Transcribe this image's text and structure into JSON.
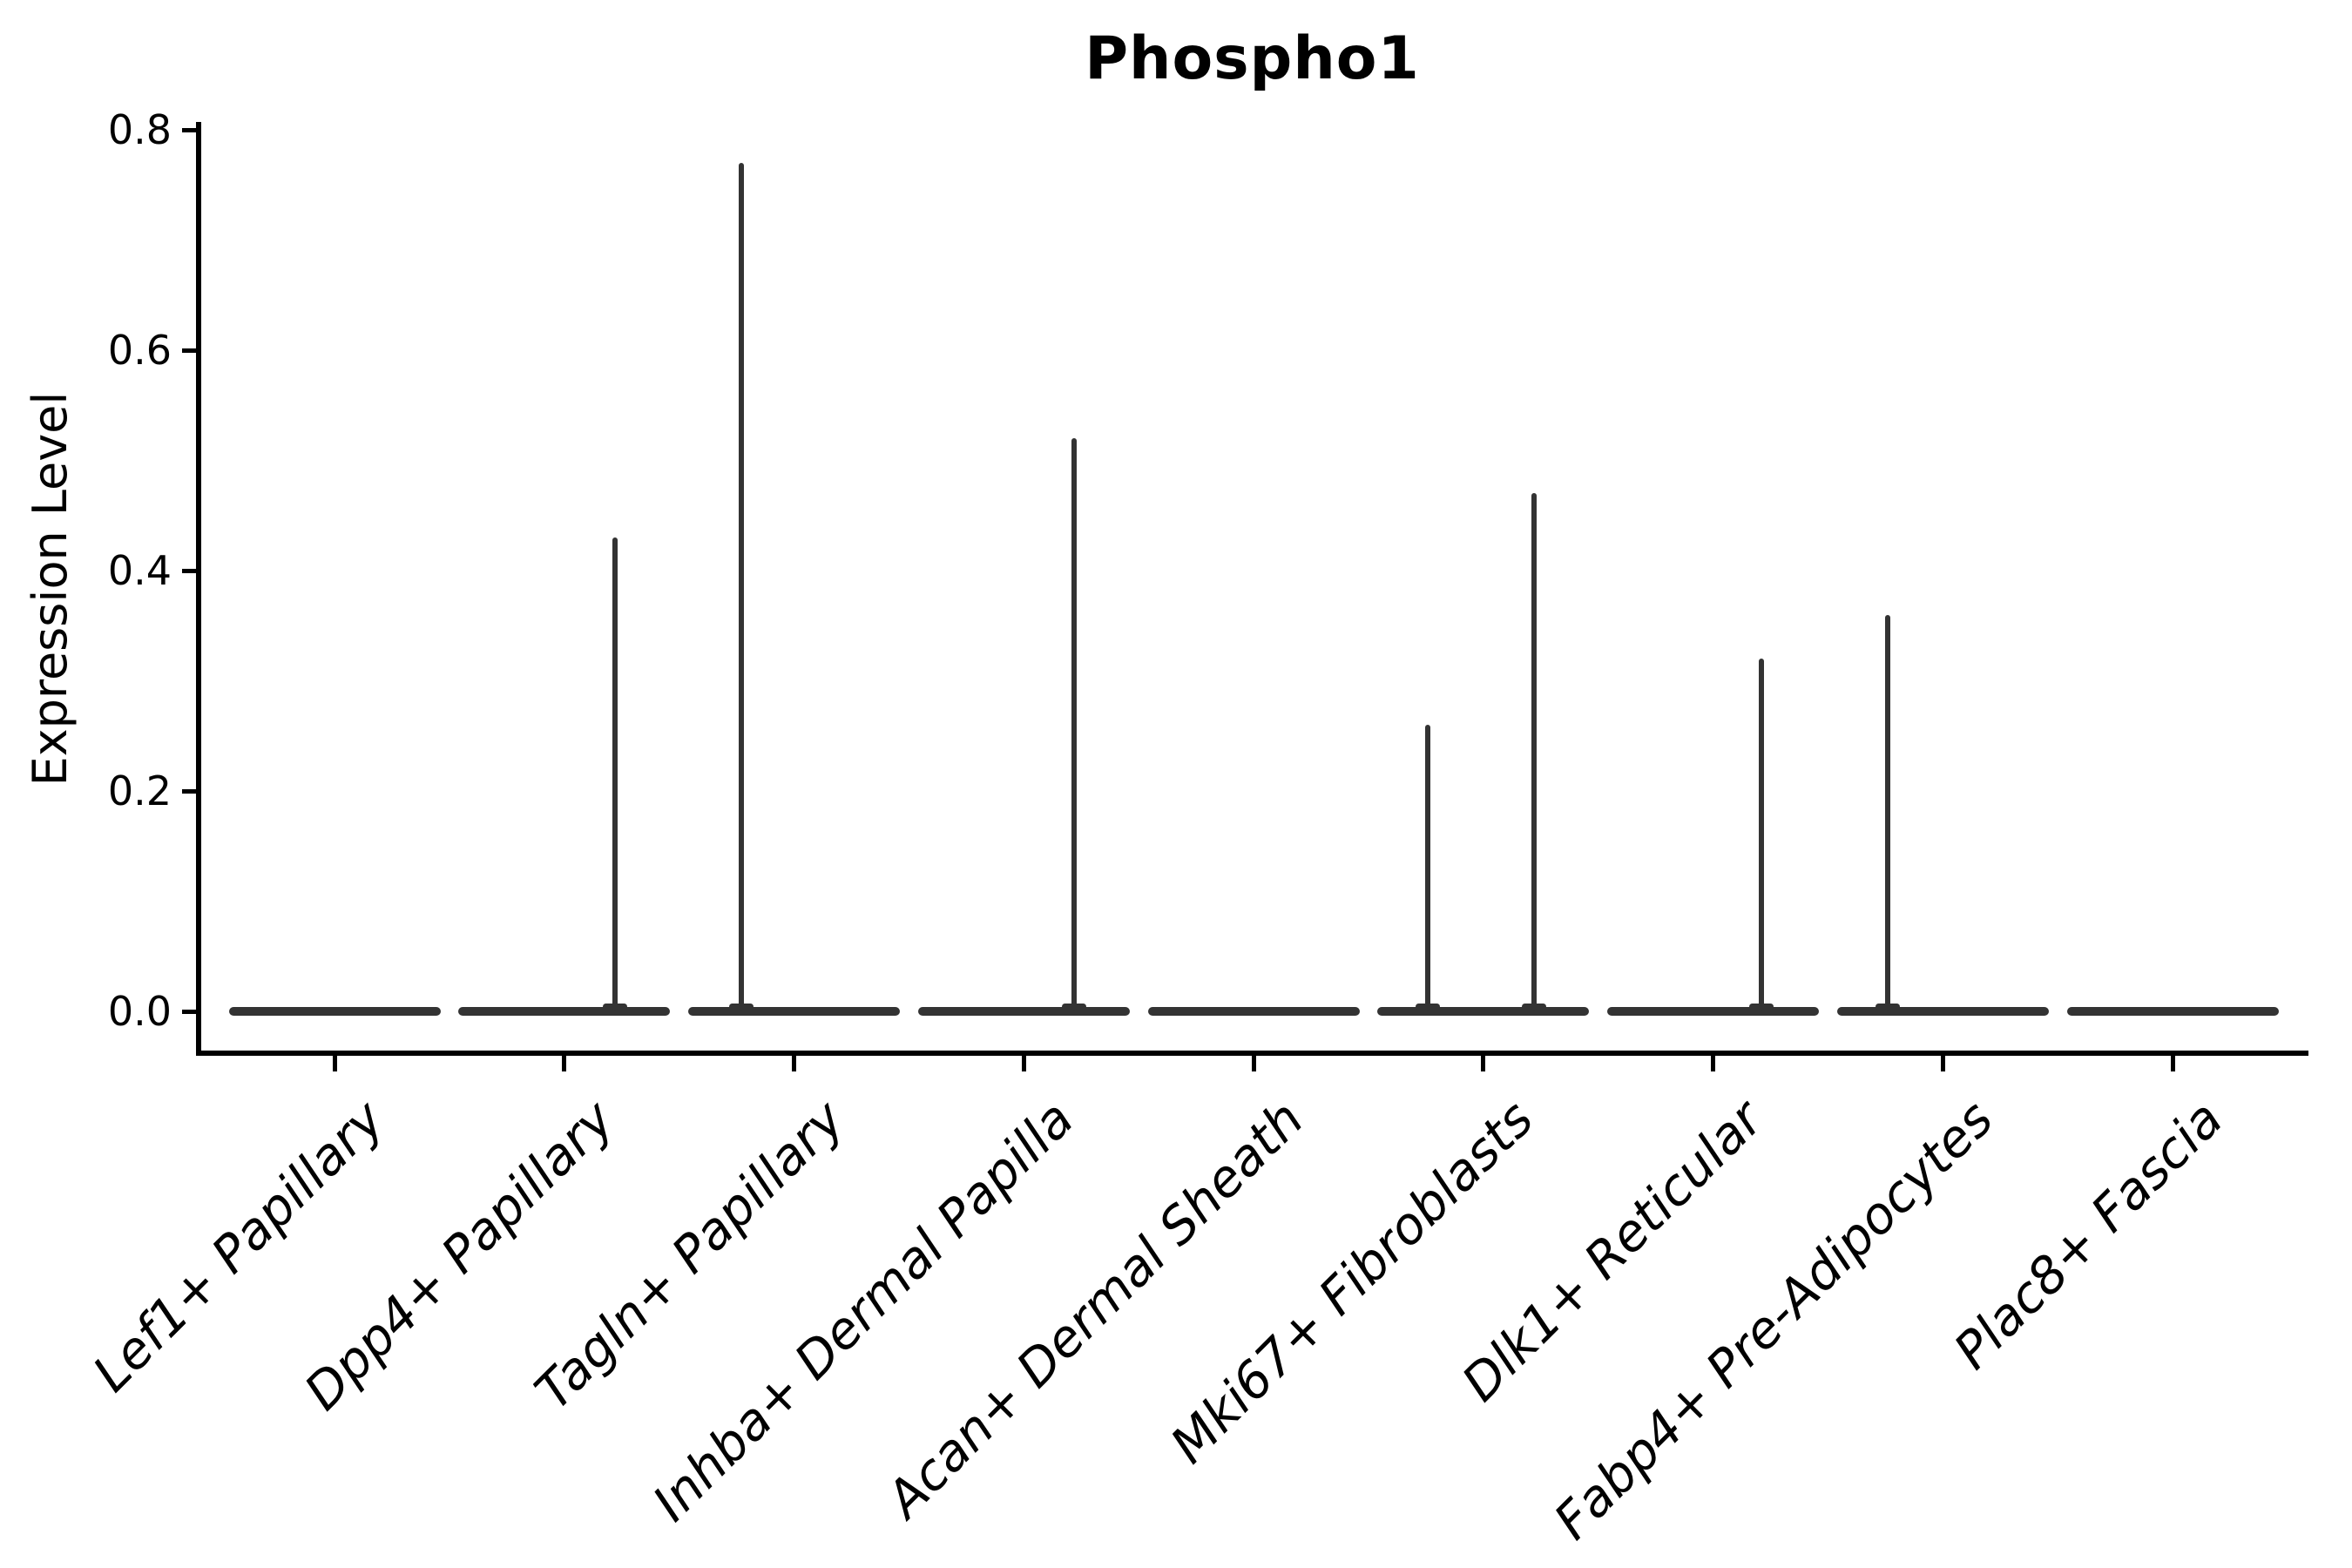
{
  "chart_data": {
    "type": "violin",
    "title": "Phospho1",
    "ylabel": "Expression Level",
    "xlabel": "",
    "ylim": [
      0.0,
      0.807
    ],
    "yticks": [
      "0.0",
      "0.2",
      "0.4",
      "0.6",
      "0.8"
    ],
    "grid": false,
    "legend_position": "none",
    "background_color": "#ffffff",
    "axis_color": "#000000",
    "violin_color": "#333333",
    "categories": [
      "Lef1+ Papillary",
      "Dpp4+ Papillary",
      "Tagln+ Papillary",
      "Inhba+ Dermal Papilla",
      "Acan+ Dermal Sheath",
      "Mki67+ Fibroblasts",
      "Dlk1+ Reticular",
      "Fabp4+ Pre-Adipocytes",
      "Plac8+ Fascia"
    ],
    "violins": [
      {
        "category": "Lef1+ Papillary",
        "body_value": 0.0,
        "spikes": []
      },
      {
        "category": "Dpp4+ Papillary",
        "body_value": 0.0,
        "spikes": [
          {
            "max_value": 0.43,
            "offset_frac": 0.22
          }
        ]
      },
      {
        "category": "Tagln+ Papillary",
        "body_value": 0.0,
        "spikes": [
          {
            "max_value": 0.77,
            "offset_frac": -0.23
          }
        ]
      },
      {
        "category": "Inhba+ Dermal Papilla",
        "body_value": 0.0,
        "spikes": [
          {
            "max_value": 0.52,
            "offset_frac": 0.22
          }
        ]
      },
      {
        "category": "Acan+ Dermal Sheath",
        "body_value": 0.0,
        "spikes": []
      },
      {
        "category": "Mki67+ Fibroblasts",
        "body_value": 0.0,
        "spikes": [
          {
            "max_value": 0.26,
            "offset_frac": -0.24
          },
          {
            "max_value": 0.47,
            "offset_frac": 0.22
          }
        ]
      },
      {
        "category": "Dlk1+ Reticular",
        "body_value": 0.0,
        "spikes": [
          {
            "max_value": 0.32,
            "offset_frac": 0.21
          }
        ]
      },
      {
        "category": "Fabp4+ Pre-Adipocytes",
        "body_value": 0.0,
        "spikes": [
          {
            "max_value": 0.36,
            "offset_frac": -0.24
          }
        ]
      },
      {
        "category": "Plac8+ Fascia",
        "body_value": 0.0,
        "spikes": []
      }
    ]
  }
}
